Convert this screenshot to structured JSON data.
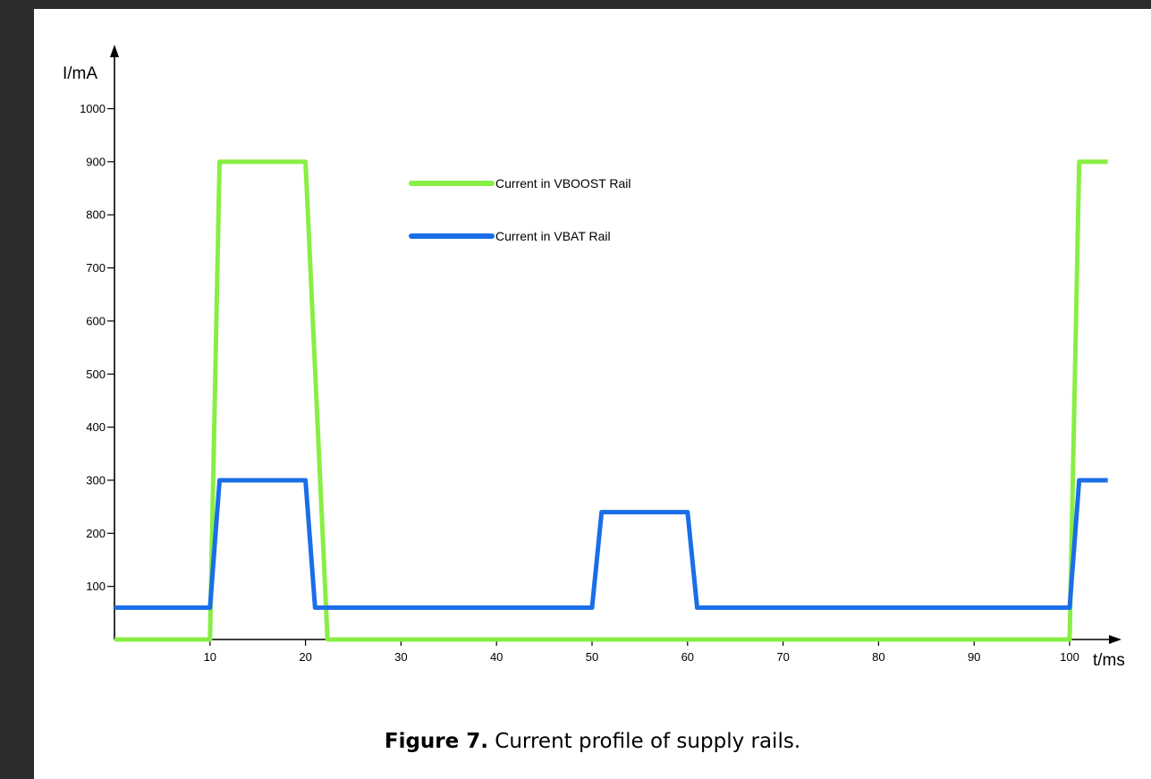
{
  "chart_data": {
    "type": "line",
    "xlabel": "t/ms",
    "ylabel": "I/mA",
    "xlim": [
      0,
      104
    ],
    "ylim": [
      0,
      1000
    ],
    "x_ticks": [
      10,
      20,
      30,
      40,
      50,
      60,
      70,
      80,
      90,
      100
    ],
    "y_ticks": [
      100,
      200,
      300,
      400,
      500,
      600,
      700,
      800,
      900,
      1000
    ],
    "grid": false,
    "legend_position": "top-center",
    "series": [
      {
        "name": "Current in VBOOST Rail",
        "color": "#88ee44",
        "x": [
          0,
          10,
          11,
          20,
          22.3,
          100,
          101,
          104
        ],
        "y": [
          0,
          0,
          900,
          900,
          0,
          0,
          900,
          900
        ]
      },
      {
        "name": "Current in VBAT Rail",
        "color": "#1a6ee8",
        "x": [
          0,
          10,
          11,
          20,
          21,
          50,
          51,
          60,
          61,
          100,
          101,
          104
        ],
        "y": [
          60,
          60,
          300,
          300,
          60,
          60,
          240,
          240,
          60,
          60,
          300,
          300
        ]
      }
    ]
  },
  "caption": {
    "label": "Figure 7.",
    "text": " Current profile of supply rails."
  }
}
